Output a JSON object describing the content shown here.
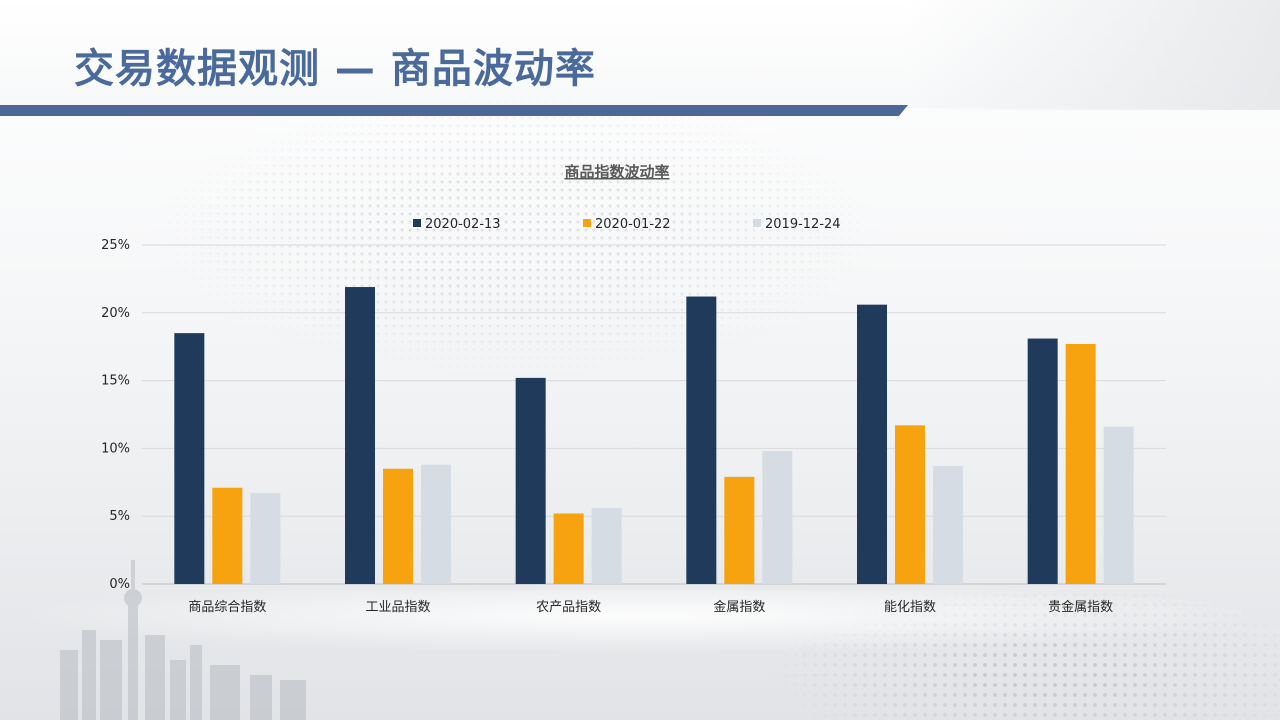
{
  "page": {
    "title": "交易数据观测 — 商品波动率"
  },
  "colors": {
    "title": "#4a6a9b",
    "title_bar": "#4d6796",
    "grid": "#d9d9d9",
    "axis_text": "#262626"
  },
  "chart_data": {
    "type": "bar",
    "title": "商品指数波动率",
    "xlabel": "",
    "ylabel": "",
    "ylim": [
      0,
      0.25
    ],
    "y_ticks": [
      0,
      0.05,
      0.1,
      0.15,
      0.2,
      0.25
    ],
    "y_tick_labels": [
      "0%",
      "5%",
      "10%",
      "15%",
      "20%",
      "25%"
    ],
    "grid": true,
    "legend_position": "top",
    "categories": [
      "商品综合指数",
      "工业品指数",
      "农产品指数",
      "金属指数",
      "能化指数",
      "贵金属指数"
    ],
    "series": [
      {
        "name": "2020-02-13",
        "color": "#1f3a5a",
        "values": [
          0.185,
          0.219,
          0.152,
          0.212,
          0.206,
          0.181
        ]
      },
      {
        "name": "2020-01-22",
        "color": "#f7a30f",
        "values": [
          0.071,
          0.085,
          0.052,
          0.079,
          0.117,
          0.177
        ]
      },
      {
        "name": "2019-12-24",
        "color": "#d6dce4",
        "values": [
          0.067,
          0.088,
          0.056,
          0.098,
          0.087,
          0.116
        ]
      }
    ]
  }
}
